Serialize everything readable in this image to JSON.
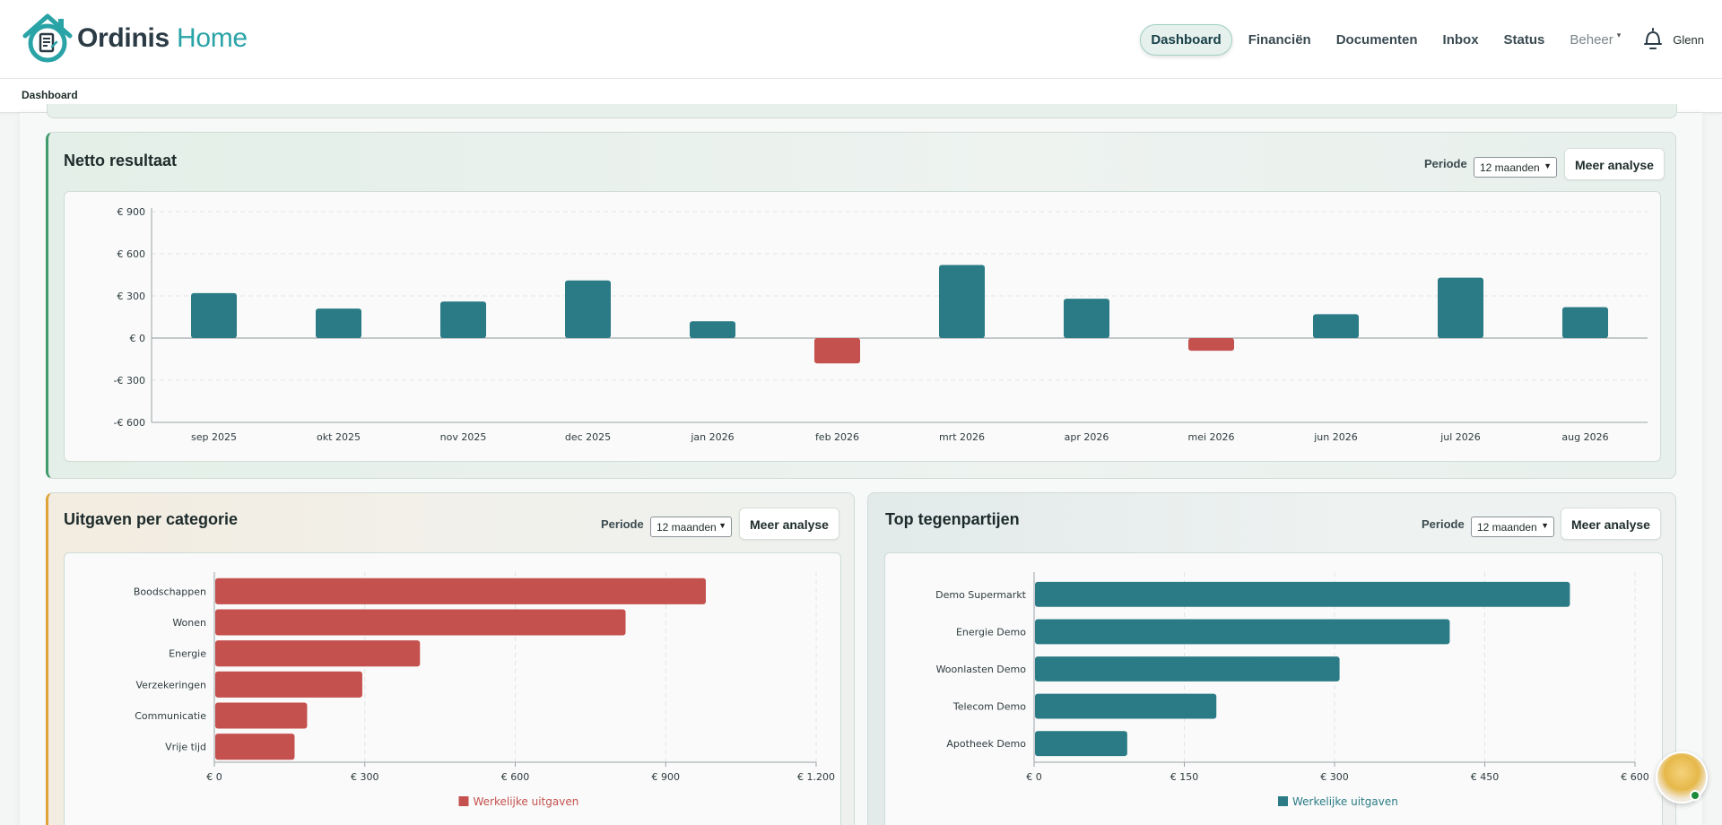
{
  "app": {
    "logo_part1": "Ordinis",
    "logo_part2": "Home"
  },
  "nav": {
    "items": [
      "Dashboard",
      "Financiën",
      "Documenten",
      "Inbox",
      "Status",
      "Beheer"
    ],
    "user": "Glenn",
    "active": "Dashboard"
  },
  "breadcrumb": "Dashboard",
  "cards": {
    "netto": {
      "title": "Netto resultaat",
      "period_label": "Periode",
      "period_value": "12 maanden",
      "button": "Meer analyse"
    },
    "uitgaven": {
      "title": "Uitgaven per categorie",
      "period_label": "Periode",
      "period_value": "12 maanden",
      "button": "Meer analyse"
    },
    "tegenpartijen": {
      "title": "Top tegenpartijen",
      "period_label": "Periode",
      "period_value": "12 maanden",
      "button": "Meer analyse"
    }
  },
  "colors": {
    "teal": "#2b7b86",
    "red": "#c5514f",
    "accent_green": "#3f9b6b",
    "accent_orange": "#e0a33a"
  },
  "chart_data": [
    {
      "type": "bar",
      "categories": [
        "sep 2025",
        "okt 2025",
        "nov 2025",
        "dec 2025",
        "jan 2026",
        "feb 2026",
        "mrt 2026",
        "apr 2026",
        "mei 2026",
        "jun 2026",
        "jul 2026",
        "aug 2026"
      ],
      "values": [
        320,
        210,
        260,
        410,
        120,
        -180,
        520,
        280,
        -90,
        170,
        430,
        220
      ],
      "ylim": [
        -600,
        900
      ],
      "yticks": [
        900,
        600,
        300,
        0,
        -300,
        -600
      ],
      "ytick_labels": [
        "€ 900",
        "€ 600",
        "€ 300",
        "€ 0",
        "-€ 300",
        "-€ 600"
      ],
      "grid": true
    },
    {
      "type": "bar",
      "orientation": "horizontal",
      "categories": [
        "Boodschappen",
        "Wonen",
        "Energie",
        "Verzekeringen",
        "Communicatie",
        "Vrije tijd"
      ],
      "series": [
        {
          "name": "Werkelijke uitgaven",
          "values": [
            980,
            820,
            410,
            295,
            185,
            160
          ]
        }
      ],
      "xlim": [
        0,
        1200
      ],
      "xticks": [
        0,
        300,
        600,
        900,
        1200
      ],
      "xtick_labels": [
        "€ 0",
        "€ 300",
        "€ 600",
        "€ 900",
        "€ 1.200"
      ],
      "legend": "bottom",
      "grid": true
    },
    {
      "type": "bar",
      "orientation": "horizontal",
      "categories": [
        "Demo Supermarkt",
        "Energie Demo",
        "Woonlasten Demo",
        "Telecom Demo",
        "Apotheek Demo"
      ],
      "series": [
        {
          "name": "Werkelijke uitgaven",
          "values": [
            535,
            415,
            305,
            182,
            93
          ]
        }
      ],
      "xlim": [
        0,
        600
      ],
      "xticks": [
        0,
        150,
        300,
        450,
        600
      ],
      "xtick_labels": [
        "€ 0",
        "€ 150",
        "€ 300",
        "€ 450",
        "€ 600"
      ],
      "legend": "bottom",
      "grid": true
    }
  ]
}
